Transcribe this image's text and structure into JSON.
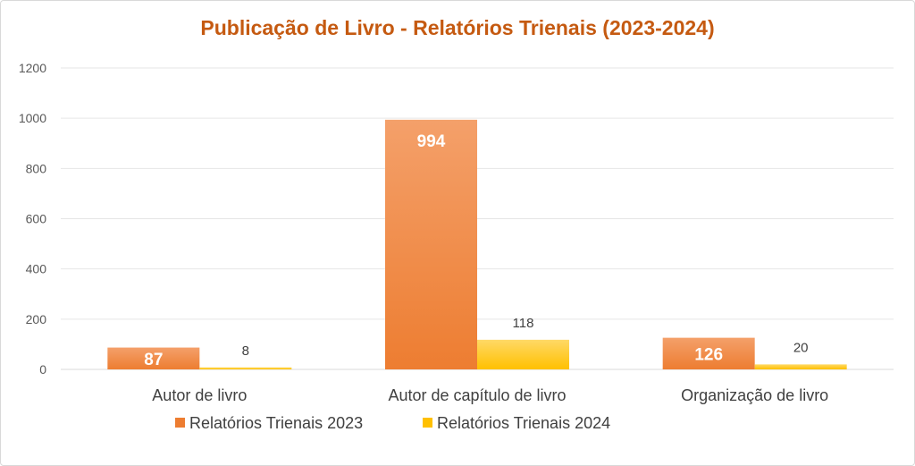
{
  "chart_data": {
    "type": "bar",
    "title": "Publicação de Livro - Relatórios Trienais (2023-2024)",
    "categories": [
      "Autor de livro",
      "Autor de capítulo de livro",
      "Organização de livro"
    ],
    "series": [
      {
        "name": "Relatórios Trienais 2023",
        "values": [
          87,
          994,
          126
        ],
        "color": "#ed7d31",
        "color_top": "#f4a06a",
        "label_position": "inside"
      },
      {
        "name": "Relatórios Trienais 2024",
        "values": [
          8,
          118,
          20
        ],
        "color": "#ffc000",
        "color_top": "#ffd966",
        "label_position": "outside"
      }
    ],
    "ylim": [
      0,
      1200
    ],
    "yticks": [
      0,
      200,
      400,
      600,
      800,
      1000,
      1200
    ],
    "grid": true,
    "legend_position": "bottom",
    "title_color": "#c55a11"
  }
}
